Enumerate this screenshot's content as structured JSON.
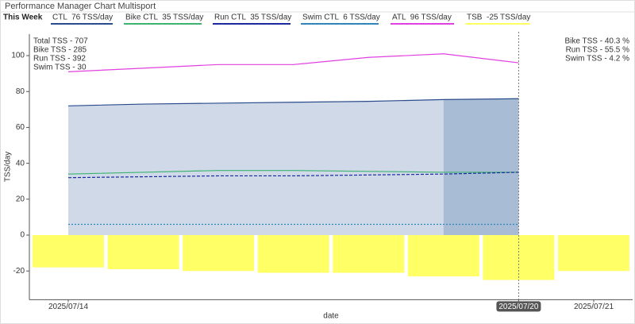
{
  "chart_data": {
    "type": "combo",
    "title": "Performance Manager Chart Multisport",
    "period_label": "This Week",
    "x_label": "date",
    "y_label": "TSS/day",
    "categories": [
      "2025/07/14",
      null,
      null,
      null,
      null,
      null,
      "2025/07/20",
      "2025/07/21"
    ],
    "series": [
      {
        "name": "CTL  76 TSS/day",
        "kind": "area",
        "color": "#2b4c8c",
        "fill": "#d0d9e8",
        "values": [
          72,
          73,
          73.5,
          74,
          74.5,
          75.5,
          76,
          null
        ]
      },
      {
        "name": "Bike CTL  35 TSS/day",
        "kind": "line",
        "color": "#3cb371",
        "values": [
          34,
          35,
          36,
          36,
          35.5,
          35,
          35,
          null
        ]
      },
      {
        "name": "Run CTL  35 TSS/day",
        "kind": "line",
        "color": "#1a2a9c",
        "dash": "4,2",
        "values": [
          32,
          32.5,
          33,
          33,
          33.5,
          34,
          35,
          null
        ]
      },
      {
        "name": "Swim CTL  6 TSS/day",
        "kind": "line",
        "color": "#2f86b8",
        "dash": "2,2",
        "values": [
          6,
          6,
          6,
          6,
          6,
          6,
          6,
          null
        ]
      },
      {
        "name": "ATL  96 TSS/day",
        "kind": "line",
        "color": "#e040e0",
        "values": [
          91,
          93,
          95,
          95,
          99,
          101,
          96,
          null
        ]
      },
      {
        "name": "TSB  -25 TSS/day",
        "kind": "bar",
        "color": "#ffff66",
        "values": [
          -18,
          -19,
          -20,
          -21,
          -21,
          -23,
          -25,
          -20
        ]
      }
    ],
    "ylim": [
      -36,
      112
    ],
    "yticks": [
      -20,
      0,
      20,
      40,
      60,
      80,
      100
    ],
    "annotations_left": [
      "Total TSS - 707",
      "Bike TSS - 285",
      "Run TSS - 392",
      "Swim TSS - 30"
    ],
    "annotations_right": [
      "Bike TSS - 40.3 %",
      "Run TSS - 55.5 %",
      "Swim TSS - 4.2 %"
    ]
  }
}
